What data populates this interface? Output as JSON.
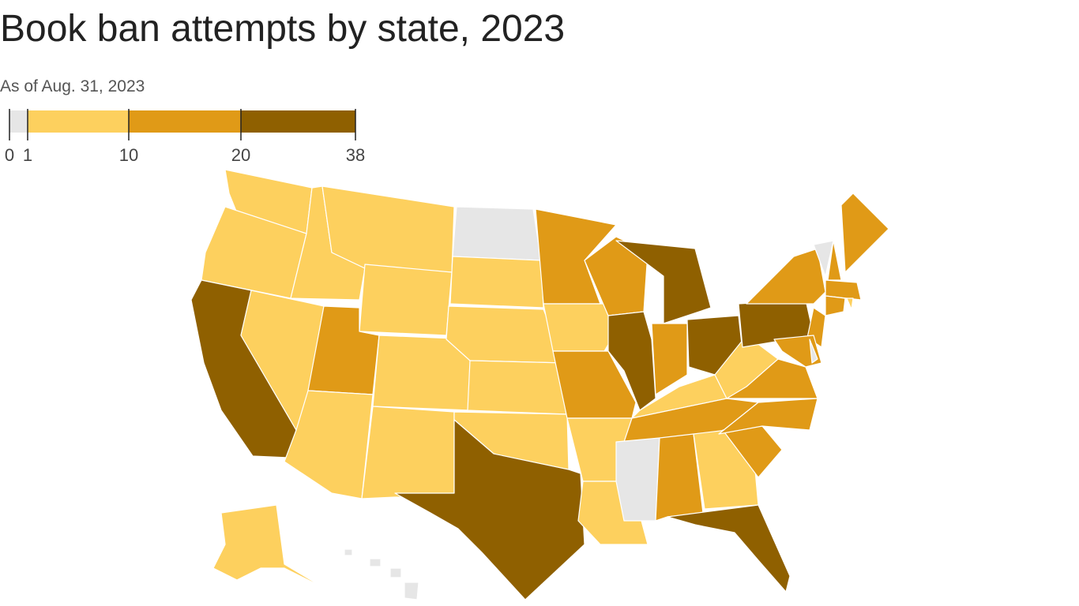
{
  "title": "Book ban attempts by state, 2023",
  "subtitle": "As of Aug. 31, 2023",
  "legend": {
    "breaks": [
      0,
      1,
      10,
      20,
      38
    ],
    "colors": [
      "#e6e6e6",
      "#fdd05e",
      "#e09a17",
      "#8f6000"
    ]
  }
}
